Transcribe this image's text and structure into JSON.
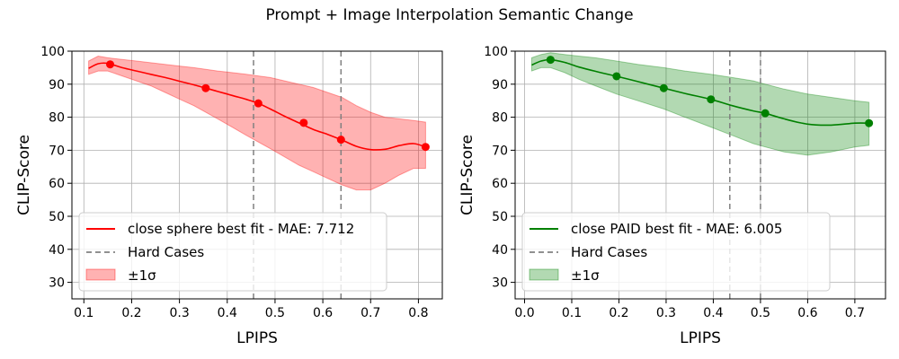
{
  "figure": {
    "title": "Prompt + Image Interpolation Semantic Change"
  },
  "chart_data": [
    {
      "type": "line",
      "xlabel": "LPIPS",
      "ylabel": "CLIP-Score",
      "xlim": [
        0.075,
        0.85
      ],
      "ylim": [
        25,
        100
      ],
      "xticks": [
        "0.1",
        "0.2",
        "0.3",
        "0.4",
        "0.5",
        "0.6",
        "0.7",
        "0.8"
      ],
      "yticks": [
        "30",
        "40",
        "50",
        "60",
        "70",
        "80",
        "90",
        "100"
      ],
      "grid": true,
      "legend_placement": "lower-left",
      "colors": {
        "line": "#ff0000",
        "band": "#ff0000",
        "hard": "#808080"
      },
      "series": [
        {
          "name": "close sphere best fit - MAE: 7.712",
          "kind": "fit",
          "x": [
            0.11,
            0.13,
            0.15,
            0.18,
            0.21,
            0.24,
            0.27,
            0.3,
            0.33,
            0.355,
            0.38,
            0.41,
            0.44,
            0.465,
            0.49,
            0.52,
            0.55,
            0.58,
            0.61,
            0.64,
            0.67,
            0.7,
            0.73,
            0.76,
            0.79,
            0.815
          ],
          "y": [
            94.8,
            96.2,
            96.3,
            95.0,
            94.0,
            93.0,
            92.0,
            90.9,
            89.8,
            88.8,
            87.8,
            86.6,
            85.4,
            84.2,
            82.5,
            80.3,
            78.3,
            76.3,
            74.8,
            73.1,
            71.2,
            70.2,
            70.3,
            71.4,
            72.0,
            71.0
          ]
        },
        {
          "name": "±1σ",
          "kind": "band",
          "x": [
            0.11,
            0.13,
            0.15,
            0.18,
            0.21,
            0.24,
            0.27,
            0.3,
            0.33,
            0.355,
            0.38,
            0.41,
            0.44,
            0.465,
            0.49,
            0.52,
            0.55,
            0.58,
            0.61,
            0.64,
            0.67,
            0.7,
            0.73,
            0.76,
            0.79,
            0.815
          ],
          "upper": [
            97.0,
            98.5,
            98.0,
            97.5,
            97.0,
            96.5,
            96.0,
            95.5,
            95.0,
            94.5,
            94.0,
            93.5,
            93.0,
            92.5,
            92.0,
            91.0,
            90.0,
            89.0,
            87.5,
            86.0,
            83.5,
            81.5,
            80.0,
            79.5,
            79.0,
            78.5
          ],
          "lower": [
            93.0,
            94.0,
            94.0,
            92.5,
            91.0,
            89.5,
            87.5,
            85.5,
            83.5,
            81.5,
            79.5,
            77.0,
            74.5,
            72.5,
            70.5,
            68.0,
            65.5,
            63.5,
            61.5,
            59.5,
            58.0,
            58.0,
            60.0,
            62.5,
            64.5,
            64.5
          ]
        },
        {
          "name": "observations",
          "kind": "points",
          "x": [
            0.155,
            0.355,
            0.465,
            0.56,
            0.638,
            0.815
          ],
          "y": [
            96.0,
            88.8,
            84.2,
            78.3,
            73.2,
            71.0
          ]
        }
      ],
      "hard_cases": {
        "name": "Hard Cases",
        "x": [
          0.455,
          0.638
        ]
      }
    },
    {
      "type": "line",
      "xlabel": "LPIPS",
      "ylabel": "CLIP-Score",
      "xlim": [
        -0.02,
        0.765
      ],
      "ylim": [
        25,
        100
      ],
      "xticks": [
        "0.0",
        "0.1",
        "0.2",
        "0.3",
        "0.4",
        "0.5",
        "0.6",
        "0.7"
      ],
      "yticks": [
        "30",
        "40",
        "50",
        "60",
        "70",
        "80",
        "90",
        "100"
      ],
      "grid": true,
      "legend_placement": "lower-left",
      "colors": {
        "line": "#008000",
        "band": "#008000",
        "hard": "#808080"
      },
      "series": [
        {
          "name": "close PAID best fit - MAE: 6.005",
          "kind": "fit",
          "x": [
            0.015,
            0.035,
            0.055,
            0.085,
            0.115,
            0.15,
            0.195,
            0.24,
            0.295,
            0.34,
            0.395,
            0.44,
            0.485,
            0.51,
            0.55,
            0.6,
            0.65,
            0.7,
            0.73
          ],
          "y": [
            95.8,
            97.0,
            97.4,
            96.6,
            95.2,
            93.9,
            92.4,
            90.8,
            88.8,
            87.2,
            85.4,
            83.5,
            81.9,
            81.2,
            79.5,
            77.9,
            77.6,
            78.2,
            78.2
          ]
        },
        {
          "name": "±1σ",
          "kind": "band",
          "x": [
            0.015,
            0.035,
            0.055,
            0.085,
            0.115,
            0.15,
            0.195,
            0.24,
            0.295,
            0.34,
            0.395,
            0.44,
            0.485,
            0.51,
            0.55,
            0.6,
            0.65,
            0.7,
            0.73
          ],
          "upper": [
            98.0,
            99.0,
            99.5,
            99.0,
            98.5,
            98.0,
            97.0,
            96.0,
            95.0,
            94.0,
            93.0,
            92.0,
            91.0,
            90.0,
            88.5,
            87.0,
            86.0,
            85.0,
            84.5
          ],
          "lower": [
            94.0,
            95.0,
            95.0,
            93.5,
            91.5,
            89.5,
            87.0,
            85.0,
            82.5,
            80.0,
            77.0,
            74.5,
            72.0,
            71.0,
            69.5,
            68.5,
            69.5,
            71.0,
            71.5
          ]
        },
        {
          "name": "observations",
          "kind": "points",
          "x": [
            0.055,
            0.195,
            0.295,
            0.395,
            0.51,
            0.73
          ],
          "y": [
            97.4,
            92.4,
            88.8,
            85.4,
            81.2,
            78.2
          ]
        }
      ],
      "hard_cases": {
        "name": "Hard Cases",
        "x": [
          0.435,
          0.5
        ]
      }
    }
  ]
}
